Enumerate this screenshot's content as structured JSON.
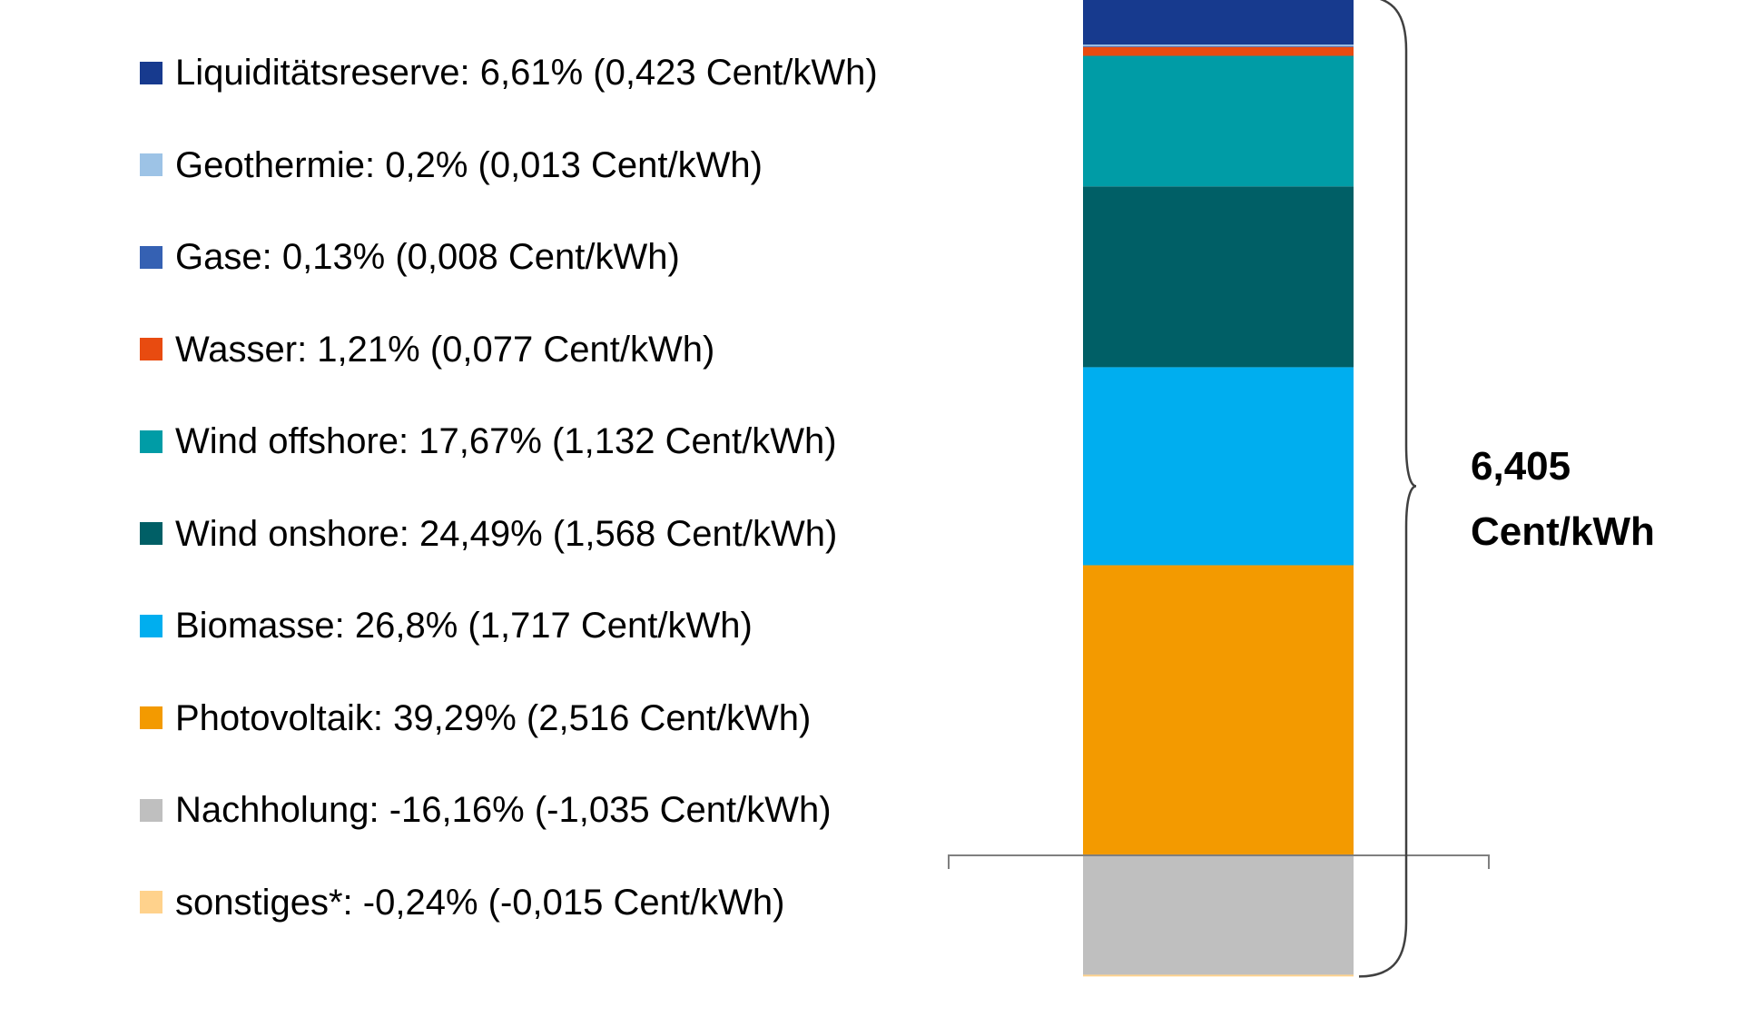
{
  "chart_data": {
    "type": "bar",
    "stacked": true,
    "orientation": "vertical",
    "unit": "Cent/kWh",
    "total": {
      "value": 6.405,
      "line1": "6,405",
      "line2": "Cent/kWh"
    },
    "legend": [
      {
        "label": "Liquiditätsreserve: 6,61% (0,423 Cent/kWh)",
        "color": "#173A8E"
      },
      {
        "label": "Geothermie: 0,2% (0,013 Cent/kWh)",
        "color": "#9DC3E6"
      },
      {
        "label": "Gase: 0,13% (0,008 Cent/kWh)",
        "color": "#3561B3"
      },
      {
        "label": "Wasser: 1,21% (0,077 Cent/kWh)",
        "color": "#E84B10"
      },
      {
        "label": "Wind offshore: 17,67% (1,132 Cent/kWh)",
        "color": "#009CA6"
      },
      {
        "label": "Wind onshore: 24,49% (1,568 Cent/kWh)",
        "color": "#005F66"
      },
      {
        "label": "Biomasse: 26,8% (1,717 Cent/kWh)",
        "color": "#00AEEF"
      },
      {
        "label": "Photovoltaik: 39,29% (2,516 Cent/kWh)",
        "color": "#F39A00"
      },
      {
        "label": "Nachholung: -16,16% (-1,035 Cent/kWh)",
        "color": "#BFBFBF"
      },
      {
        "label": "sonstiges*: -0,24% (-0,015 Cent/kWh)",
        "color": "#FFD28C"
      }
    ],
    "series": [
      {
        "name": "Photovoltaik",
        "value": 2.516,
        "color": "#F39A00"
      },
      {
        "name": "Biomasse",
        "value": 1.717,
        "color": "#00AEEF"
      },
      {
        "name": "Wind onshore",
        "value": 1.568,
        "color": "#005F66"
      },
      {
        "name": "Wind offshore",
        "value": 1.132,
        "color": "#009CA6"
      },
      {
        "name": "Wasser",
        "value": 0.077,
        "color": "#E84B10"
      },
      {
        "name": "Gase",
        "value": 0.008,
        "color": "#3561B3"
      },
      {
        "name": "Geothermie",
        "value": 0.013,
        "color": "#9DC3E6"
      },
      {
        "name": "Liquiditätsreserve",
        "value": 0.423,
        "color": "#173A8E"
      },
      {
        "name": "Nachholung",
        "value": -1.035,
        "color": "#BFBFBF"
      },
      {
        "name": "sonstiges*",
        "value": -0.015,
        "color": "#FFD28C"
      }
    ]
  }
}
